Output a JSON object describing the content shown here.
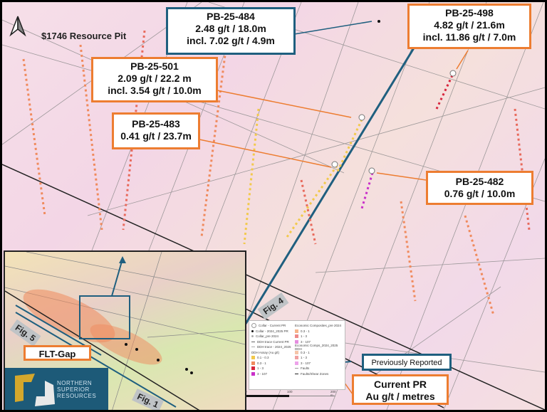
{
  "map": {
    "title": "$1746 Resource Pit",
    "north_arrow": "north-arrow-icon",
    "figure_labels": [
      "Fig. 4",
      "Fig. 5",
      "Fig. 1"
    ],
    "callouts": [
      {
        "hole": "PB-25-484",
        "lines": [
          "2.48 g/t / 18.0m",
          "incl. 7.02 g/t / 4.9m"
        ],
        "style": "previously-reported"
      },
      {
        "hole": "PB-25-498",
        "lines": [
          "4.82 g/t / 21.6m",
          "incl. 11.86 g/t / 7.0m"
        ],
        "style": "current"
      },
      {
        "hole": "PB-25-501",
        "lines": [
          "2.09 g/t / 22.2 m",
          "incl. 3.54 g/t / 10.0m"
        ],
        "style": "current"
      },
      {
        "hole": "PB-25-483",
        "lines": [
          "0.41 g/t / 23.7m"
        ],
        "style": "current"
      },
      {
        "hole": "PB-25-482",
        "lines": [
          "0.76 g/t / 10.0m"
        ],
        "style": "current"
      }
    ],
    "key": {
      "previously_reported": "Previously Reported",
      "current_pr_line1": "Current PR",
      "current_pr_line2": "Au g/t / metres"
    }
  },
  "inset": {
    "label": "FLT-Gap",
    "logo_text": [
      "NORTHERN",
      "SUPERIOR",
      "RESOURCES"
    ]
  },
  "legend": {
    "left": [
      "Collar - Current PR",
      "Collar - 2024_2025 PR",
      "Collar_pre 2024",
      "DDH trace Current PR",
      "DDH trace - 2024_2025",
      "DDH Assay (Au g/t)",
      "0.1 - 0.3",
      "0.3 - 1",
      "1 - 3",
      "3 - 107"
    ],
    "right": [
      "Economic Composites_pre 2024",
      "0.3 - 1",
      "1 - 3",
      "3 - 107",
      "Economic Comps_2024_2025 DDH",
      "0.3 - 1",
      "1 - 3",
      "3 - 107",
      "Faults",
      "Faults/Shear Zones"
    ],
    "scale": [
      "0",
      "100",
      "200 m"
    ]
  },
  "colors": {
    "current": "#ed7d31",
    "previous": "#1f5f7f",
    "grade_low": "#f2c94c",
    "grade_mid": "#f08a5d",
    "grade_high": "#d7263d",
    "grade_top": "#c930c9"
  }
}
